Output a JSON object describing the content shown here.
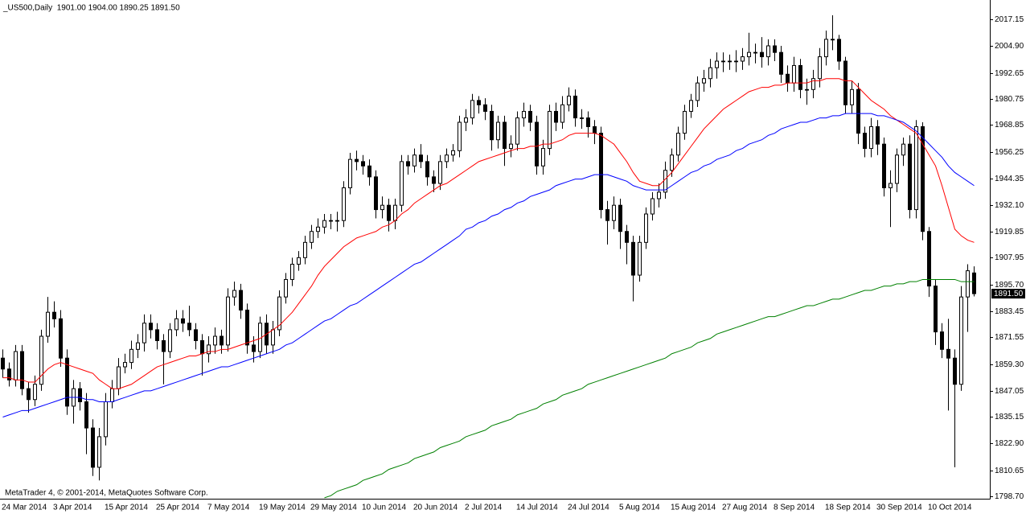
{
  "chart_data": {
    "type": "candlestick",
    "title": "_US500,Daily  1901.00 1904.00 1890.25 1891.50",
    "footer": "MetaTrader 4, © 2001-2014, MetaQuotes Software Corp.",
    "categories": [
      "24 Mar 2014",
      null,
      null,
      null,
      null,
      null,
      null,
      null,
      "3 Apr 2014",
      null,
      null,
      null,
      null,
      null,
      null,
      null,
      "15 Apr 2014",
      null,
      null,
      null,
      null,
      null,
      null,
      null,
      "25 Apr 2014",
      null,
      null,
      null,
      null,
      null,
      null,
      null,
      "7 May 2014",
      null,
      null,
      null,
      null,
      null,
      null,
      null,
      "19 May 2014",
      null,
      null,
      null,
      null,
      null,
      null,
      null,
      "29 May 2014",
      null,
      null,
      null,
      null,
      null,
      null,
      null,
      "10 Jun 2014",
      null,
      null,
      null,
      null,
      null,
      null,
      null,
      "20 Jun 2014",
      null,
      null,
      null,
      null,
      null,
      null,
      null,
      "2 Jul 2014",
      null,
      null,
      null,
      null,
      null,
      null,
      null,
      "14 Jul 2014",
      null,
      null,
      null,
      null,
      null,
      null,
      null,
      "24 Jul 2014",
      null,
      null,
      null,
      null,
      null,
      null,
      null,
      "5 Aug 2014",
      null,
      null,
      null,
      null,
      null,
      null,
      null,
      "15 Aug 2014",
      null,
      null,
      null,
      null,
      null,
      null,
      null,
      "27 Aug 2014",
      null,
      null,
      null,
      null,
      null,
      null,
      null,
      "8 Sep 2014",
      null,
      null,
      null,
      null,
      null,
      null,
      null,
      "18 Sep 2014",
      null,
      null,
      null,
      null,
      null,
      null,
      null,
      "30 Sep 2014",
      null,
      null,
      null,
      null,
      null,
      null,
      null,
      "10 Oct 2014",
      null,
      null,
      null,
      null,
      null,
      null,
      null
    ],
    "open": [
      1862,
      1857,
      1852,
      1865,
      1848,
      1843,
      1850,
      1872,
      1883,
      1880,
      1862,
      1840,
      1848,
      1842,
      1830,
      1812,
      1826,
      1842,
      1848,
      1858,
      1860,
      1866,
      1869,
      1878,
      1875,
      1870,
      1865,
      1875,
      1880,
      1878,
      1875,
      1870,
      1864,
      1868,
      1872,
      1868,
      1890,
      1893,
      1884,
      1868,
      1865,
      1878,
      1868,
      1875,
      1890,
      1898,
      1905,
      1908,
      1915,
      1920,
      1922,
      1925,
      1925,
      1925,
      1940,
      1953,
      1952,
      1950,
      1945,
      1930,
      1932,
      1925,
      1932,
      1952,
      1950,
      1955,
      1952,
      1945,
      1942,
      1952,
      1955,
      1957,
      1970,
      1972,
      1980,
      1978,
      1975,
      1962,
      1970,
      1958,
      1960,
      1972,
      1975,
      1970,
      1950,
      1958,
      1975,
      1970,
      1978,
      1982,
      1972,
      1972,
      1968,
      1965,
      1930,
      1925,
      1932,
      1920,
      1915,
      1900,
      1915,
      1928,
      1935,
      1938,
      1948,
      1955,
      1965,
      1975,
      1980,
      1988,
      1990,
      1995,
      1998,
      1998,
      1998,
      1998,
      2000,
      2002,
      2002,
      2000,
      2005,
      2002,
      1992,
      1988,
      1996,
      1985,
      1985,
      1990,
      2000,
      2008,
      2008,
      1998,
      1978,
      1985,
      1965,
      1958,
      1968,
      1960,
      1940,
      1942,
      1955,
      1960,
      1930,
      1968,
      1920,
      1895,
      1874,
      1866,
      1862,
      1850,
      1890,
      1901
    ],
    "high": [
      1866,
      1860,
      1868,
      1868,
      1851,
      1854,
      1875,
      1890,
      1888,
      1884,
      1866,
      1852,
      1851,
      1846,
      1834,
      1830,
      1846,
      1852,
      1862,
      1864,
      1870,
      1873,
      1882,
      1882,
      1878,
      1873,
      1878,
      1884,
      1884,
      1886,
      1878,
      1873,
      1872,
      1876,
      1875,
      1894,
      1897,
      1896,
      1887,
      1872,
      1881,
      1882,
      1879,
      1893,
      1901,
      1908,
      1911,
      1918,
      1923,
      1926,
      1928,
      1928,
      1929,
      1943,
      1956,
      1957,
      1955,
      1953,
      1948,
      1936,
      1935,
      1935,
      1955,
      1955,
      1958,
      1960,
      1955,
      1948,
      1955,
      1958,
      1960,
      1973,
      1976,
      1983,
      1982,
      1981,
      1978,
      1973,
      1973,
      1964,
      1975,
      1979,
      1978,
      1973,
      1962,
      1978,
      1979,
      1982,
      1986,
      1985,
      1976,
      1975,
      1971,
      1968,
      1934,
      1936,
      1935,
      1923,
      1918,
      1918,
      1931,
      1938,
      1942,
      1952,
      1958,
      1968,
      1978,
      1983,
      1991,
      1994,
      1999,
      2002,
      2002,
      2001,
      2003,
      2004,
      2011,
      2006,
      2009,
      2008,
      2008,
      2005,
      1996,
      2000,
      1999,
      1990,
      1994,
      2004,
      2012,
      2019,
      2010,
      2000,
      1989,
      1988,
      1968,
      1972,
      1971,
      1963,
      1948,
      1958,
      1963,
      1964,
      1971,
      1970,
      1922,
      1898,
      1878,
      1880,
      1866,
      1895,
      1905,
      1904
    ],
    "low": [
      1853,
      1849,
      1849,
      1845,
      1837,
      1840,
      1847,
      1869,
      1876,
      1858,
      1836,
      1832,
      1838,
      1818,
      1808,
      1806,
      1822,
      1839,
      1845,
      1855,
      1857,
      1862,
      1865,
      1871,
      1866,
      1850,
      1862,
      1872,
      1874,
      1872,
      1866,
      1854,
      1860,
      1864,
      1864,
      1865,
      1886,
      1880,
      1864,
      1860,
      1862,
      1864,
      1864,
      1872,
      1887,
      1895,
      1902,
      1905,
      1912,
      1917,
      1919,
      1921,
      1920,
      1922,
      1937,
      1948,
      1946,
      1941,
      1926,
      1926,
      1920,
      1921,
      1929,
      1946,
      1947,
      1949,
      1941,
      1938,
      1939,
      1949,
      1952,
      1954,
      1966,
      1969,
      1974,
      1971,
      1957,
      1958,
      1950,
      1954,
      1957,
      1968,
      1966,
      1946,
      1946,
      1955,
      1966,
      1967,
      1975,
      1968,
      1967,
      1963,
      1960,
      1926,
      1914,
      1921,
      1912,
      1905,
      1888,
      1897,
      1912,
      1925,
      1931,
      1935,
      1945,
      1952,
      1962,
      1972,
      1977,
      1984,
      1986,
      1990,
      1993,
      1994,
      1993,
      1994,
      1996,
      1997,
      1995,
      1996,
      1998,
      1988,
      1984,
      1984,
      1981,
      1978,
      1981,
      1986,
      1996,
      2003,
      1994,
      1974,
      1974,
      1960,
      1954,
      1954,
      1955,
      1936,
      1922,
      1938,
      1950,
      1926,
      1926,
      1916,
      1890,
      1868,
      1862,
      1838,
      1812,
      1847,
      1874,
      1890.25
    ],
    "close": [
      1857,
      1852,
      1865,
      1848,
      1843,
      1850,
      1872,
      1883,
      1880,
      1862,
      1840,
      1848,
      1842,
      1830,
      1812,
      1826,
      1842,
      1848,
      1858,
      1860,
      1866,
      1869,
      1878,
      1875,
      1870,
      1865,
      1875,
      1880,
      1878,
      1875,
      1870,
      1864,
      1868,
      1872,
      1868,
      1890,
      1893,
      1884,
      1868,
      1865,
      1878,
      1868,
      1875,
      1890,
      1898,
      1905,
      1908,
      1915,
      1920,
      1922,
      1925,
      1925,
      1925,
      1940,
      1953,
      1952,
      1950,
      1945,
      1930,
      1932,
      1925,
      1932,
      1952,
      1950,
      1955,
      1952,
      1945,
      1942,
      1952,
      1955,
      1957,
      1970,
      1972,
      1980,
      1978,
      1975,
      1962,
      1970,
      1958,
      1960,
      1972,
      1975,
      1970,
      1950,
      1958,
      1975,
      1970,
      1978,
      1982,
      1972,
      1972,
      1968,
      1965,
      1930,
      1925,
      1932,
      1920,
      1915,
      1900,
      1915,
      1928,
      1935,
      1938,
      1948,
      1955,
      1965,
      1975,
      1980,
      1988,
      1990,
      1995,
      1998,
      1998,
      1998,
      1998,
      2000,
      2002,
      2002,
      2000,
      2005,
      2002,
      1992,
      1988,
      1996,
      1985,
      1985,
      1990,
      2000,
      2008,
      2008,
      1998,
      1978,
      1985,
      1965,
      1958,
      1968,
      1960,
      1940,
      1942,
      1955,
      1960,
      1930,
      1968,
      1920,
      1895,
      1874,
      1866,
      1862,
      1850,
      1890,
      1902,
      1891.5
    ],
    "up_color": "#ffffff",
    "down_color": "#000000",
    "series": [
      {
        "color": "#ff0000",
        "values": [
          1853,
          1853,
          1852,
          1852,
          1851,
          1851,
          1854,
          1857,
          1859,
          1860,
          1859,
          1858,
          1857,
          1856,
          1855,
          1852,
          1850,
          1848,
          1848,
          1849,
          1850,
          1852,
          1854,
          1856,
          1858,
          1859,
          1860,
          1861,
          1862,
          1863,
          1863,
          1864,
          1865,
          1865,
          1866,
          1866,
          1867,
          1868,
          1869,
          1870,
          1871,
          1873,
          1875,
          1877,
          1880,
          1883,
          1887,
          1891,
          1895,
          1900,
          1904,
          1907,
          1910,
          1913,
          1915,
          1917,
          1918,
          1919,
          1920,
          1922,
          1923,
          1925,
          1928,
          1930,
          1933,
          1935,
          1937,
          1939,
          1941,
          1942,
          1944,
          1946,
          1948,
          1950,
          1952,
          1953,
          1954,
          1955,
          1956,
          1957,
          1958,
          1958,
          1959,
          1959,
          1960,
          1960,
          1961,
          1962,
          1964,
          1965,
          1965,
          1965,
          1965,
          1964,
          1962,
          1960,
          1956,
          1952,
          1947,
          1943,
          1942,
          1941,
          1941,
          1944,
          1947,
          1951,
          1955,
          1959,
          1963,
          1967,
          1970,
          1973,
          1976,
          1978,
          1980,
          1982,
          1984,
          1985,
          1986,
          1986,
          1987,
          1987,
          1988,
          1988,
          1988,
          1988,
          1989,
          1989,
          1990,
          1990,
          1990,
          1989,
          1989,
          1986,
          1983,
          1980,
          1978,
          1976,
          1973,
          1971,
          1969,
          1967,
          1965,
          1960,
          1955,
          1950,
          1941,
          1931,
          1921,
          1918,
          1916,
          1915
        ]
      },
      {
        "color": "#0000ff",
        "values": [
          1835,
          1836,
          1837,
          1838,
          1838,
          1839,
          1840,
          1841,
          1842,
          1843,
          1844,
          1844,
          1844,
          1843,
          1843,
          1842,
          1842,
          1842,
          1843,
          1844,
          1845,
          1846,
          1847,
          1847,
          1848,
          1849,
          1850,
          1851,
          1852,
          1853,
          1854,
          1855,
          1856,
          1857,
          1858,
          1858,
          1859,
          1860,
          1861,
          1862,
          1863,
          1864,
          1865,
          1866,
          1868,
          1869,
          1871,
          1873,
          1875,
          1877,
          1879,
          1880,
          1882,
          1884,
          1886,
          1887,
          1889,
          1891,
          1893,
          1895,
          1897,
          1899,
          1901,
          1903,
          1905,
          1906,
          1908,
          1910,
          1912,
          1914,
          1916,
          1918,
          1921,
          1922,
          1924,
          1925,
          1927,
          1928,
          1930,
          1931,
          1933,
          1934,
          1936,
          1937,
          1938,
          1939,
          1941,
          1942,
          1943,
          1944,
          1944,
          1945,
          1946,
          1946,
          1946,
          1945,
          1944,
          1943,
          1941,
          1940,
          1939,
          1939,
          1939,
          1939,
          1941,
          1943,
          1945,
          1947,
          1948,
          1950,
          1951,
          1953,
          1954,
          1955,
          1957,
          1958,
          1960,
          1961,
          1962,
          1964,
          1965,
          1967,
          1968,
          1969,
          1970,
          1970,
          1971,
          1972,
          1972,
          1973,
          1973,
          1974,
          1974,
          1974,
          1974,
          1974,
          1973,
          1973,
          1972,
          1971,
          1970,
          1968,
          1966,
          1963,
          1960,
          1957,
          1954,
          1950,
          1947,
          1945,
          1943,
          1941
        ]
      },
      {
        "color": "#008000",
        "values": [
          null,
          null,
          null,
          null,
          null,
          null,
          null,
          null,
          null,
          null,
          null,
          null,
          null,
          null,
          null,
          null,
          null,
          null,
          null,
          null,
          null,
          null,
          null,
          null,
          null,
          null,
          null,
          null,
          null,
          null,
          null,
          null,
          null,
          null,
          null,
          null,
          null,
          null,
          null,
          null,
          null,
          null,
          null,
          null,
          null,
          null,
          null,
          null,
          null,
          null,
          1798,
          1799,
          1801,
          1802,
          1803,
          1804,
          1806,
          1807,
          1808,
          1809,
          1811,
          1812,
          1813,
          1814,
          1816,
          1817,
          1818,
          1819,
          1821,
          1822,
          1823,
          1824,
          1826,
          1827,
          1828,
          1829,
          1831,
          1832,
          1833,
          1834,
          1836,
          1837,
          1838,
          1839,
          1841,
          1842,
          1843,
          1845,
          1846,
          1847,
          1848,
          1850,
          1851,
          1852,
          1853,
          1854,
          1855,
          1856,
          1857,
          1858,
          1859,
          1860,
          1861,
          1862,
          1864,
          1865,
          1866,
          1867,
          1869,
          1870,
          1871,
          1873,
          1874,
          1875,
          1876,
          1877,
          1878,
          1879,
          1880,
          1881,
          1881,
          1882,
          1883,
          1884,
          1885,
          1886,
          1886,
          1887,
          1888,
          1889,
          1889,
          1890,
          1891,
          1892,
          1893,
          1893,
          1894,
          1895,
          1895,
          1896,
          1896,
          1897,
          1897,
          1898,
          1898,
          1898,
          1898,
          1898,
          1898,
          1897,
          1897,
          1897
        ]
      }
    ],
    "current_price": {
      "value": 1891.5,
      "label": "1891.50"
    },
    "ylim": [
      1797.6,
      2026.0
    ],
    "yticks": [
      2017.15,
      {
        "value": 2004.9,
        "label": "2004.90"
      },
      1992.65,
      1980.75,
      1968.85,
      1956.25,
      1944.35,
      {
        "value": 1932.1,
        "label": "1932.10"
      },
      1919.85,
      1907.95,
      {
        "value": 1895.7,
        "label": "1895.70"
      },
      1883.45,
      1871.55,
      {
        "value": 1859.3,
        "label": "1859.30"
      },
      1847.05,
      1835.15,
      {
        "value": 1822.9,
        "label": "1822.90"
      },
      1810.65,
      {
        "value": 1798.7,
        "label": "1798.70"
      }
    ],
    "grid": false
  }
}
